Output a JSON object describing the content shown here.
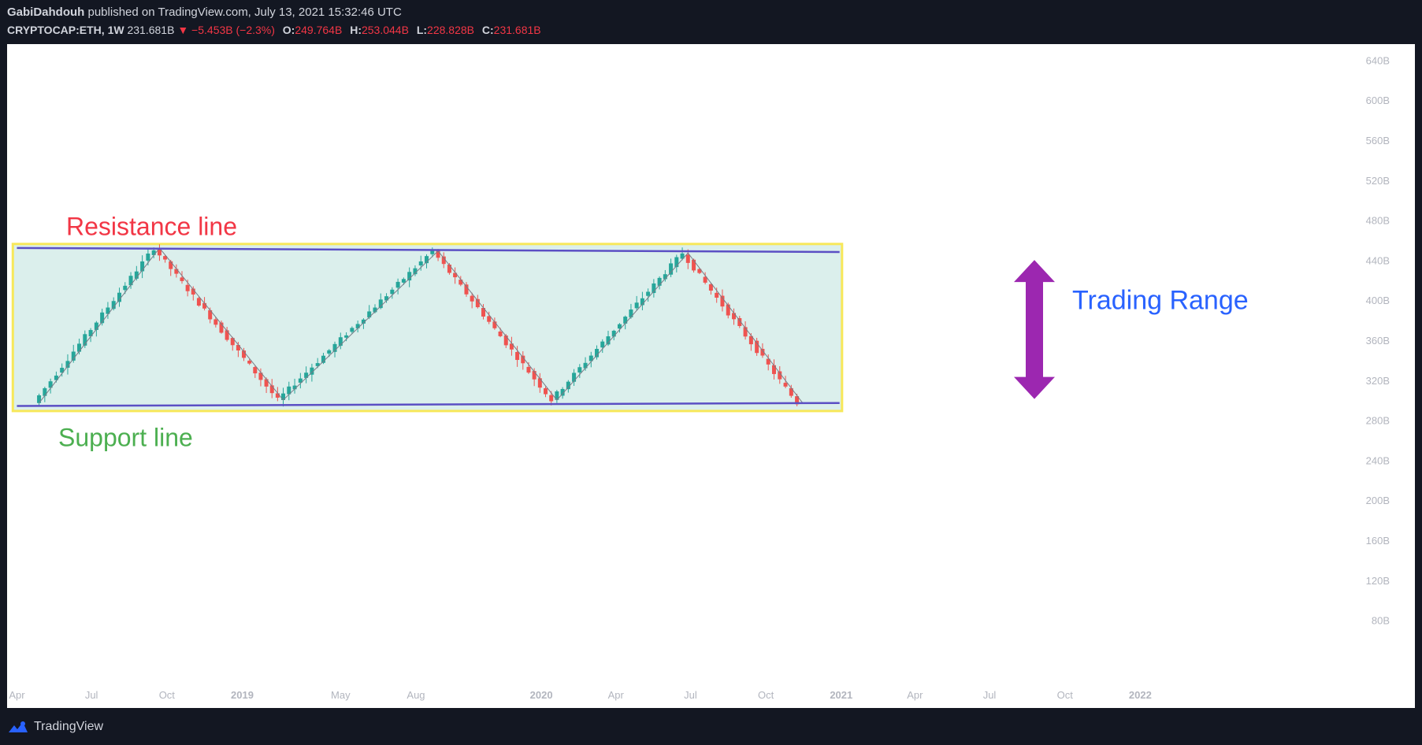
{
  "header": {
    "author": "GabiDahdouh",
    "published": " published on TradingView.com, July 13, 2021 15:32:46 UTC",
    "symbol": "CRYPTOCAP:ETH, 1W",
    "last": "231.681B",
    "change": "▼ −5.453B (−2.3%)",
    "open_label": "O:",
    "open": "249.764B",
    "high_label": "H:",
    "high": "253.044B",
    "low_label": "L:",
    "low": "228.828B",
    "close_label": "C:",
    "close": "231.681B"
  },
  "footer": {
    "brand": "TradingView"
  },
  "colors": {
    "up": "#26a69a",
    "down": "#ef5350",
    "range_fill": "#dbefec",
    "range_border": "#f7e85a",
    "trend_line": "#5b4fc4",
    "resistance_text": "#f23645",
    "support_text": "#4caf50",
    "range_text": "#2962ff",
    "arrow": "#9c27b0"
  },
  "annotations": {
    "resistance": "Resistance line",
    "support": "Support line",
    "range": "Trading Range"
  },
  "chart_data": {
    "type": "candlestick",
    "title": "",
    "ylabel": "",
    "xlabel": "",
    "y_unit": "B",
    "ylim": [
      60,
      660
    ],
    "xlim": [
      "2018-03-20",
      "2022-02-10"
    ],
    "y_ticks": [
      "640B",
      "600B",
      "560B",
      "520B",
      "480B",
      "440B",
      "400B",
      "360B",
      "320B",
      "280B",
      "240B",
      "200B",
      "160B",
      "120B",
      "80B"
    ],
    "x_ticks": [
      {
        "label": "Apr",
        "date": "2018-04-01",
        "bold": false
      },
      {
        "label": "Jul",
        "date": "2018-07-01",
        "bold": false
      },
      {
        "label": "Oct",
        "date": "2018-10-01",
        "bold": false
      },
      {
        "label": "2019",
        "date": "2019-01-01",
        "bold": true
      },
      {
        "label": "May",
        "date": "2019-05-01",
        "bold": false
      },
      {
        "label": "Aug",
        "date": "2019-08-01",
        "bold": false
      },
      {
        "label": "2020",
        "date": "2020-01-01",
        "bold": true
      },
      {
        "label": "Apr",
        "date": "2020-04-01",
        "bold": false
      },
      {
        "label": "Jul",
        "date": "2020-07-01",
        "bold": false
      },
      {
        "label": "Oct",
        "date": "2020-10-01",
        "bold": false
      },
      {
        "label": "2021",
        "date": "2021-01-01",
        "bold": true
      },
      {
        "label": "Apr",
        "date": "2021-04-01",
        "bold": false
      },
      {
        "label": "Jul",
        "date": "2021-07-01",
        "bold": false
      },
      {
        "label": "Oct",
        "date": "2021-10-01",
        "bold": false
      },
      {
        "label": "2022",
        "date": "2022-01-01",
        "bold": true
      }
    ],
    "zigzag": [
      {
        "date": "2018-04-28",
        "value": 298
      },
      {
        "date": "2018-09-22",
        "value": 453
      },
      {
        "date": "2019-02-20",
        "value": 301
      },
      {
        "date": "2019-08-28",
        "value": 450
      },
      {
        "date": "2020-01-20",
        "value": 301
      },
      {
        "date": "2020-06-28",
        "value": 448
      },
      {
        "date": "2020-11-15",
        "value": 298
      }
    ],
    "resistance_line": [
      {
        "date": "2018-04-01",
        "value": 453
      },
      {
        "date": "2020-12-30",
        "value": 449
      }
    ],
    "support_line": [
      {
        "date": "2018-04-01",
        "value": 295
      },
      {
        "date": "2020-12-30",
        "value": 298
      }
    ],
    "range_box": {
      "start": "2018-03-27",
      "end": "2021-01-02",
      "low": 290,
      "high": 457
    }
  }
}
